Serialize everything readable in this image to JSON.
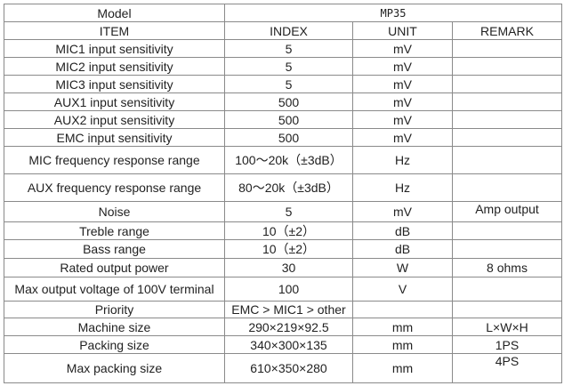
{
  "table": {
    "model_label": "Model",
    "model_value": "MP35",
    "columns": [
      "ITEM",
      "INDEX",
      "UNIT",
      "REMARK"
    ],
    "rows": [
      [
        "MIC1 input sensitivity",
        "5",
        "mV"
      ],
      [
        "MIC2 input sensitivity",
        "5",
        "mV"
      ],
      [
        "MIC3 input sensitivity",
        "5",
        "mV"
      ],
      [
        "AUX1 input sensitivity",
        "500",
        "mV"
      ],
      [
        "AUX2 input sensitivity",
        "500",
        "mV"
      ],
      [
        "EMC input sensitivity",
        "500",
        "mV"
      ],
      [
        "MIC frequency response range",
        "100～20k（±3dB）",
        "Hz"
      ],
      [
        "AUX frequency response range",
        "80～20k（±3dB）",
        "Hz"
      ],
      [
        "Noise",
        "5",
        "mV",
        "Amp output"
      ],
      [
        "Treble range",
        "10（±2）",
        "dB"
      ],
      [
        "Bass range",
        "10（±2）",
        "dB"
      ],
      [
        "Rated output power",
        "30",
        "W",
        "8 ohms"
      ],
      [
        "Max output voltage of 100V terminal",
        "100",
        "V"
      ],
      [
        "Priority",
        "EMC > MIC1 > other"
      ],
      [
        "Machine size",
        "290×219×92.5",
        "mm",
        "L×W×H"
      ],
      [
        "Packing size",
        "340×300×135",
        "mm",
        "1PS"
      ],
      [
        "Max packing size",
        "610×350×280",
        "mm",
        "4PS"
      ]
    ]
  }
}
